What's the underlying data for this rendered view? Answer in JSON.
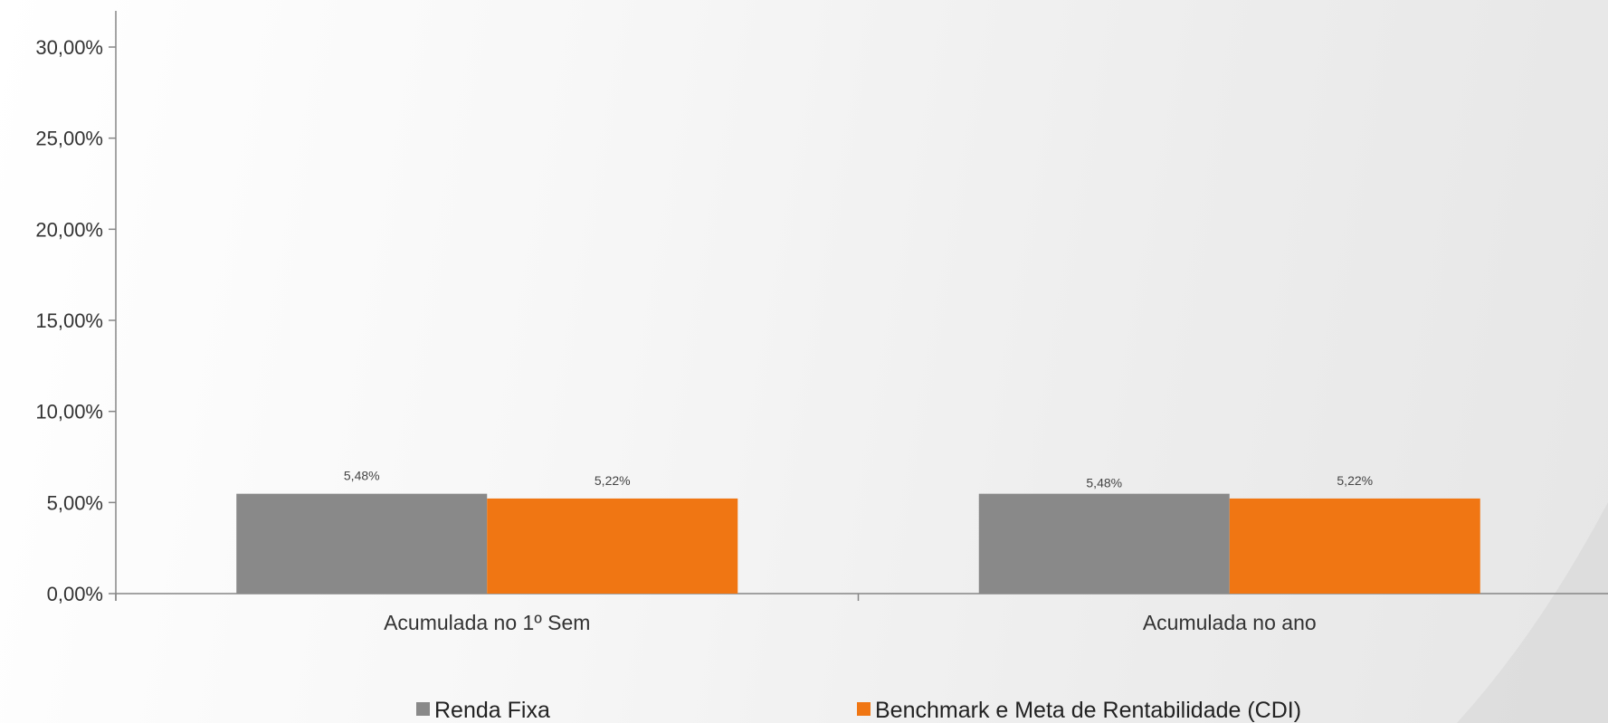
{
  "chart_data": {
    "type": "bar",
    "categories": [
      "Acumulada no 1º Sem",
      "Acumulada no ano"
    ],
    "series": [
      {
        "name": "Renda Fixa",
        "values": [
          5.48,
          5.48
        ],
        "labels": [
          "5,48%",
          "5,48%"
        ],
        "color": "#898989"
      },
      {
        "name": "Benchmark e Meta de Rentabilidade (CDI)",
        "values": [
          5.22,
          5.22
        ],
        "labels": [
          "5,22%",
          "5,22%"
        ],
        "color": "#F07613"
      }
    ],
    "ylim": [
      0,
      30
    ],
    "yticks": [
      0,
      5,
      10,
      15,
      20,
      25,
      30
    ],
    "ytick_labels": [
      "0,00%",
      "5,00%",
      "10,00%",
      "15,00%",
      "20,00%",
      "25,00%",
      "30,00%"
    ],
    "title": "",
    "xlabel": "",
    "ylabel": "",
    "grid": false,
    "legend_position": "bottom"
  }
}
